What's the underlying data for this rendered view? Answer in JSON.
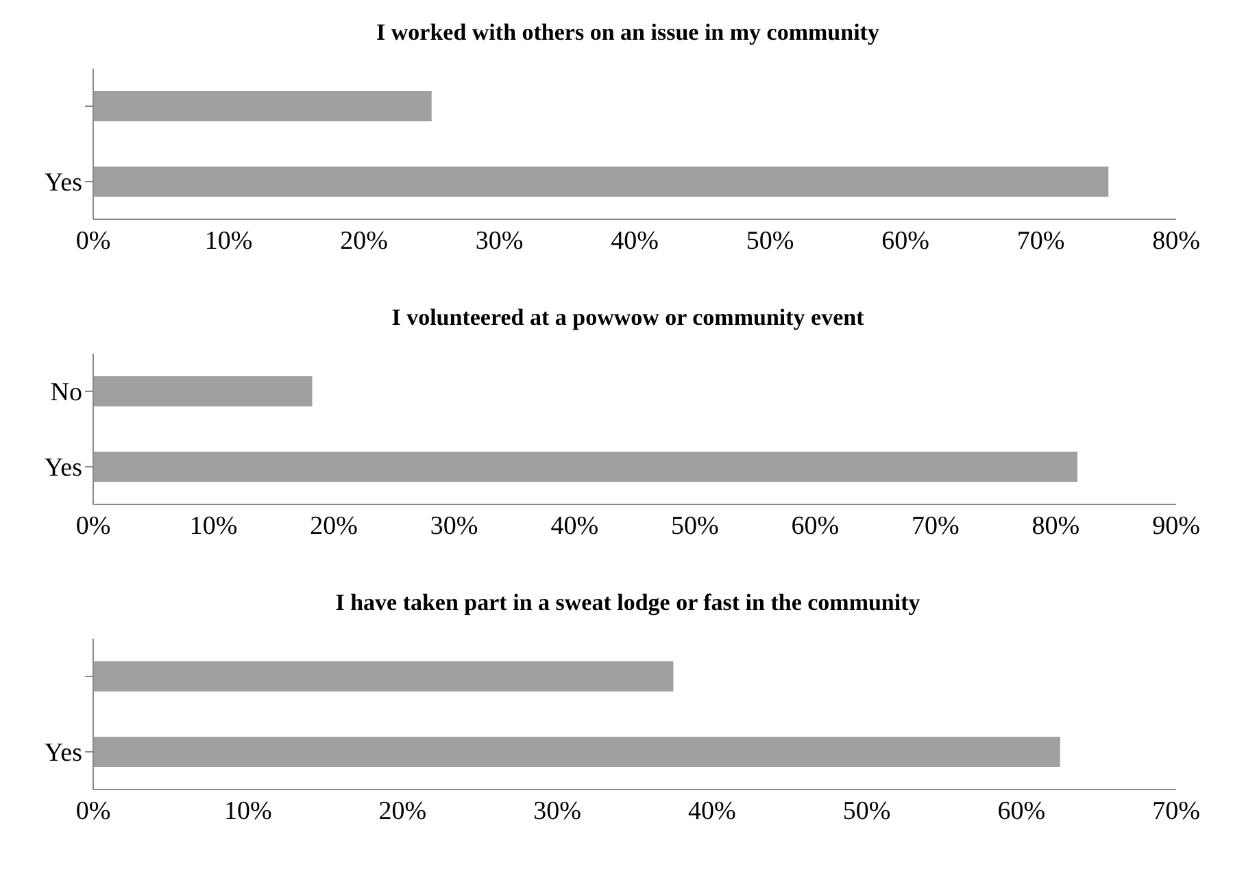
{
  "chart_data": [
    {
      "type": "bar",
      "orientation": "horizontal",
      "title": "I worked with others on an issue in my community",
      "categories": [
        null,
        "Yes"
      ],
      "values": [
        25,
        75
      ],
      "color": "#a0a0a0",
      "xlim": [
        0,
        80
      ],
      "xticks": [
        {
          "value": 0,
          "label": "0%"
        },
        {
          "value": 10,
          "label": "10%"
        },
        {
          "value": 20,
          "label": "20%"
        },
        {
          "value": 30,
          "label": "30%"
        },
        {
          "value": 40,
          "label": "40%"
        },
        {
          "value": 50,
          "label": "50%"
        },
        {
          "value": 60,
          "label": "60%"
        },
        {
          "value": 70,
          "label": "70%"
        },
        {
          "value": 80,
          "label": "80%"
        }
      ]
    },
    {
      "type": "bar",
      "orientation": "horizontal",
      "title": "I volunteered at a powwow or community event",
      "categories": [
        "No",
        "Yes"
      ],
      "values": [
        18.2,
        81.8
      ],
      "color": "#a0a0a0",
      "xlim": [
        0,
        90
      ],
      "xticks": [
        {
          "value": 0,
          "label": "0%"
        },
        {
          "value": 10,
          "label": "10%"
        },
        {
          "value": 20,
          "label": "20%"
        },
        {
          "value": 30,
          "label": "30%"
        },
        {
          "value": 40,
          "label": "40%"
        },
        {
          "value": 50,
          "label": "50%"
        },
        {
          "value": 60,
          "label": "60%"
        },
        {
          "value": 70,
          "label": "70%"
        },
        {
          "value": 80,
          "label": "80%"
        },
        {
          "value": 90,
          "label": "90%"
        }
      ]
    },
    {
      "type": "bar",
      "orientation": "horizontal",
      "title": "I have taken part in a sweat lodge or fast in the community",
      "categories": [
        null,
        "Yes"
      ],
      "values": [
        37.5,
        62.5
      ],
      "color": "#a0a0a0",
      "xlim": [
        0,
        70
      ],
      "xticks": [
        {
          "value": 0,
          "label": "0%"
        },
        {
          "value": 10,
          "label": "10%"
        },
        {
          "value": 20,
          "label": "20%"
        },
        {
          "value": 30,
          "label": "30%"
        },
        {
          "value": 40,
          "label": "40%"
        },
        {
          "value": 50,
          "label": "50%"
        },
        {
          "value": 60,
          "label": "60%"
        },
        {
          "value": 70,
          "label": "70%"
        }
      ]
    }
  ]
}
